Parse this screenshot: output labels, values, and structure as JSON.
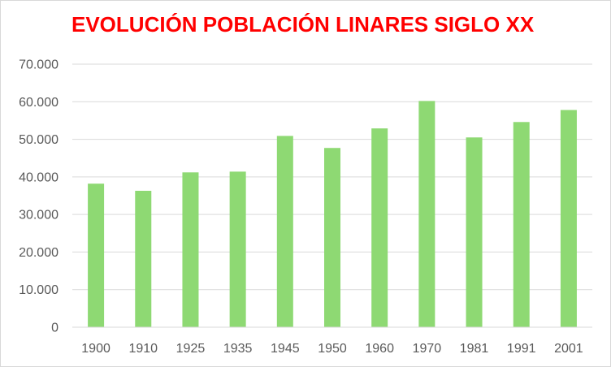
{
  "chart_data": {
    "type": "bar",
    "title": "EVOLUCIÓN POBLACIÓN LINARES SIGLO XX",
    "categories": [
      "1900",
      "1910",
      "1925",
      "1935",
      "1945",
      "1950",
      "1960",
      "1970",
      "1981",
      "1991",
      "2001"
    ],
    "values": [
      38200,
      36300,
      41200,
      41400,
      50900,
      47700,
      52900,
      60200,
      50500,
      54600,
      57800
    ],
    "ylim": [
      0,
      70000
    ],
    "yticks": [
      "0",
      "10.000",
      "20.000",
      "30.000",
      "40.000",
      "50.000",
      "60.000",
      "70.000"
    ],
    "xlabel": "",
    "ylabel": "",
    "grid": true,
    "legend": "none",
    "colors": {
      "title": "#ff0000",
      "bar": "#8ed973",
      "grid": "#d9d9d9",
      "tick_text": "#595959"
    }
  }
}
